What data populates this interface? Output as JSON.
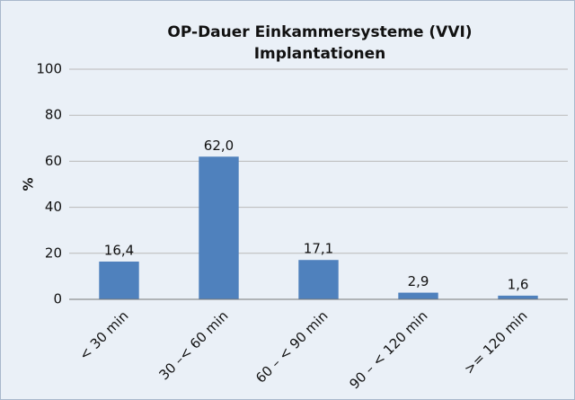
{
  "chart_data": {
    "type": "bar",
    "title": "OP-Dauer Einkammersysteme (VVI)",
    "subtitle": "Implantationen",
    "y_label": "%",
    "categories": [
      "< 30 min",
      "30 –< 60 min",
      "60 – < 90 min",
      "90 – < 120 min",
      ">= 120 min"
    ],
    "values": [
      16.4,
      62.0,
      17.1,
      2.9,
      1.6
    ],
    "value_labels": [
      "16,4",
      "62,0",
      "17,1",
      "2,9",
      "1,6"
    ],
    "color": "#4f81bd",
    "ylim": [
      0,
      100
    ],
    "yticks": [
      0,
      20,
      40,
      60,
      80,
      100
    ],
    "grid": true
  }
}
